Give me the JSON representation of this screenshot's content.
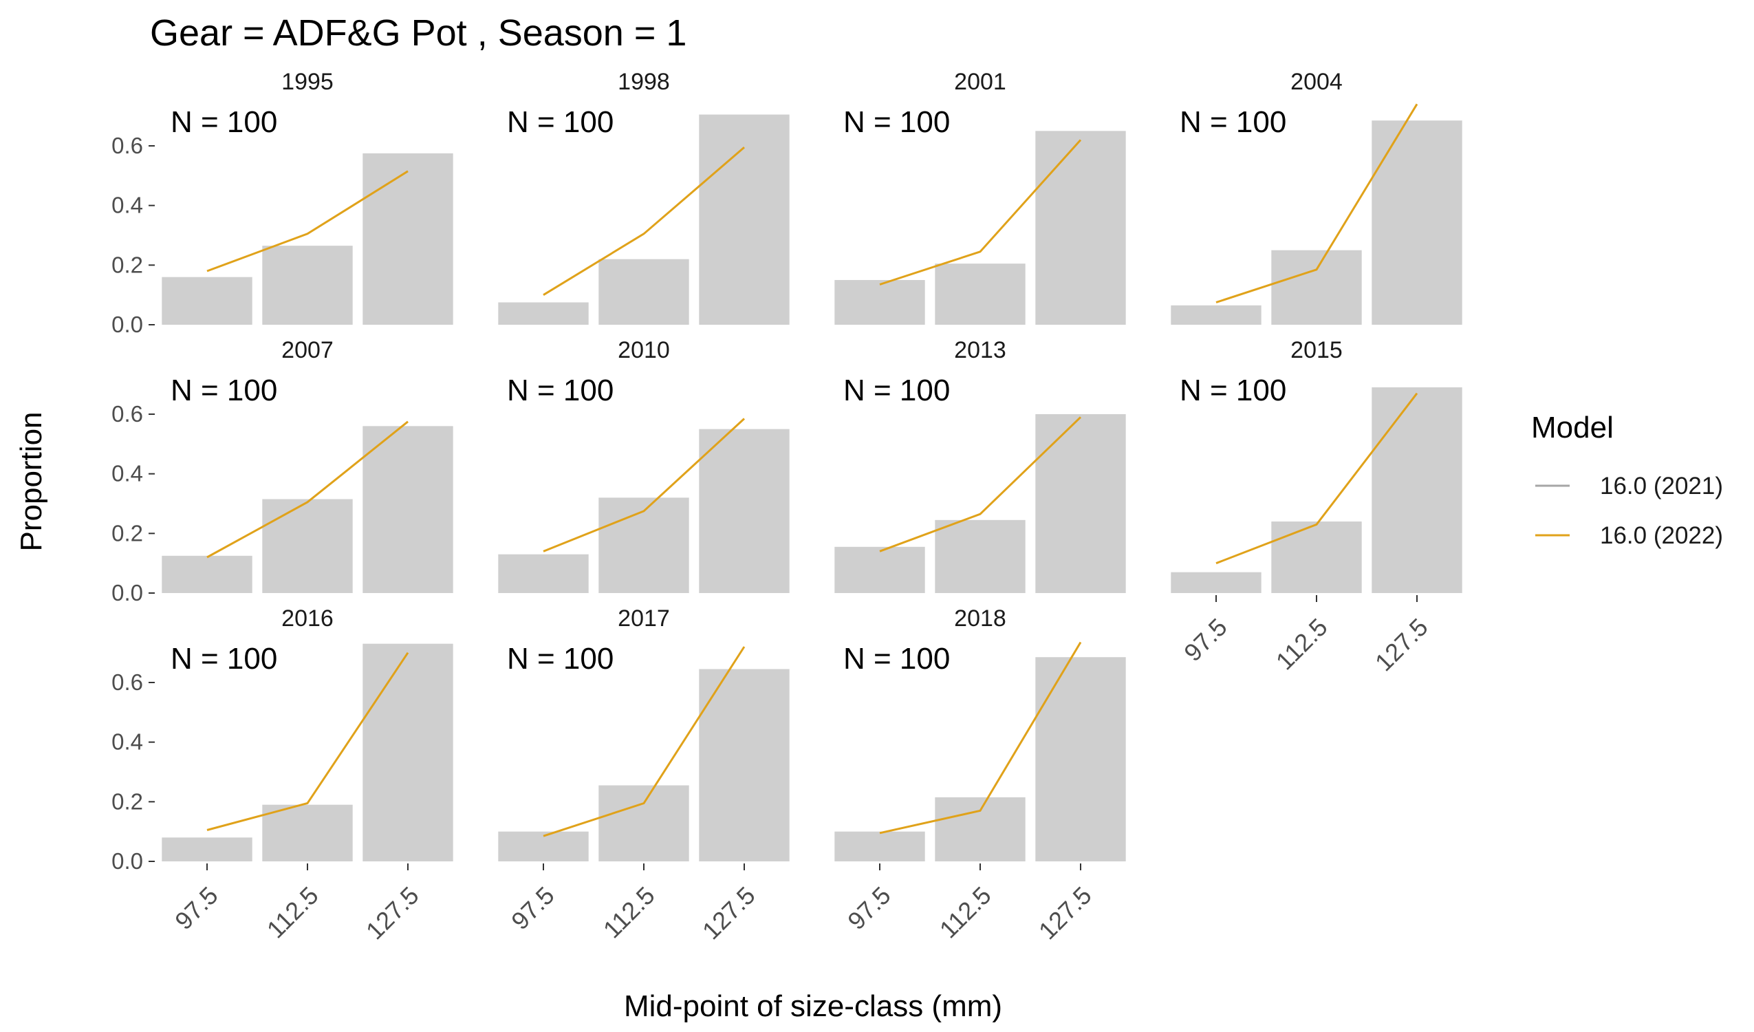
{
  "chart_data": {
    "type": "bar",
    "title": "Gear = ADF&G Pot , Season = 1",
    "xlabel": "Mid-point of size-class (mm)",
    "ylabel": "Proportion",
    "categories": [
      "97.5",
      "112.5",
      "127.5"
    ],
    "ylim": [
      0,
      0.72
    ],
    "y_ticks": [
      "0.0",
      "0.2",
      "0.4",
      "0.6"
    ],
    "y_tick_values": [
      0,
      0.2,
      0.4,
      0.6
    ],
    "grid": false,
    "legend": {
      "title": "Model",
      "position": "right",
      "entries": [
        {
          "name": "16.0 (2021)",
          "color": "#a6a6a6"
        },
        {
          "name": "16.0 (2022)",
          "color": "#e0a21a"
        }
      ]
    },
    "bar_color": "#cfcfcf",
    "panels": [
      {
        "year": "1995",
        "n_label": "N = 100",
        "observed": [
          0.16,
          0.265,
          0.575
        ],
        "model_2022": [
          0.18,
          0.305,
          0.515
        ]
      },
      {
        "year": "1998",
        "n_label": "N = 100",
        "observed": [
          0.075,
          0.22,
          0.705
        ],
        "model_2022": [
          0.1,
          0.305,
          0.595
        ]
      },
      {
        "year": "2001",
        "n_label": "N = 100",
        "observed": [
          0.15,
          0.205,
          0.65
        ],
        "model_2022": [
          0.135,
          0.245,
          0.62
        ]
      },
      {
        "year": "2004",
        "n_label": "N = 100",
        "observed": [
          0.065,
          0.25,
          0.685
        ],
        "model_2022": [
          0.075,
          0.185,
          0.74
        ]
      },
      {
        "year": "2007",
        "n_label": "N = 100",
        "observed": [
          0.125,
          0.315,
          0.56
        ],
        "model_2022": [
          0.12,
          0.305,
          0.575
        ]
      },
      {
        "year": "2010",
        "n_label": "N = 100",
        "observed": [
          0.13,
          0.32,
          0.55
        ],
        "model_2022": [
          0.14,
          0.275,
          0.585
        ]
      },
      {
        "year": "2013",
        "n_label": "N = 100",
        "observed": [
          0.155,
          0.245,
          0.6
        ],
        "model_2022": [
          0.14,
          0.265,
          0.59
        ]
      },
      {
        "year": "2015",
        "n_label": "N = 100",
        "observed": [
          0.07,
          0.24,
          0.69
        ],
        "model_2022": [
          0.1,
          0.23,
          0.67
        ]
      },
      {
        "year": "2016",
        "n_label": "N = 100",
        "observed": [
          0.08,
          0.19,
          0.73
        ],
        "model_2022": [
          0.105,
          0.195,
          0.7
        ]
      },
      {
        "year": "2017",
        "n_label": "N = 100",
        "observed": [
          0.1,
          0.255,
          0.645
        ],
        "model_2022": [
          0.085,
          0.195,
          0.72
        ]
      },
      {
        "year": "2018",
        "n_label": "N = 100",
        "observed": [
          0.1,
          0.215,
          0.685
        ],
        "model_2022": [
          0.095,
          0.17,
          0.735
        ]
      }
    ]
  }
}
